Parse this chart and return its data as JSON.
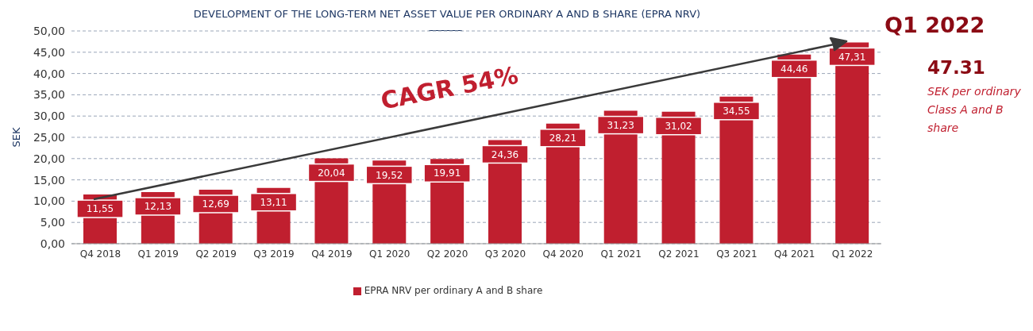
{
  "chart_data": {
    "type": "bar",
    "title": "DEVELOPMENT OF THE LONG-TERM NET ASSET VALUE PER ORDINARY A AND B SHARE (EPRA NRV)",
    "ylabel": "SEK",
    "categories": [
      "Q4 2018",
      "Q1 2019",
      "Q2 2019",
      "Q3 2019",
      "Q4 2019",
      "Q1 2020",
      "Q2 2020",
      "Q3 2020",
      "Q4 2020",
      "Q1 2021",
      "Q2 2021",
      "Q3 2021",
      "Q4 2021",
      "Q1 2022"
    ],
    "series": [
      {
        "name": "EPRA NRV per ordinary A and B share",
        "color": "#c01f2f",
        "values": [
          11.55,
          12.13,
          12.69,
          13.11,
          20.04,
          19.52,
          19.91,
          24.36,
          28.21,
          31.23,
          31.02,
          34.55,
          44.46,
          47.31
        ],
        "value_labels": [
          "11,55",
          "12,13",
          "12,69",
          "13,11",
          "20,04",
          "19,52",
          "19,91",
          "24,36",
          "28,21",
          "31,23",
          "31,02",
          "34,55",
          "44,46",
          "47,31"
        ]
      }
    ],
    "ylim": [
      0,
      50
    ],
    "yticks": [
      {
        "value": 0,
        "label": "0,00"
      },
      {
        "value": 5,
        "label": "5,00"
      },
      {
        "value": 10,
        "label": "10,00"
      },
      {
        "value": 15,
        "label": "15,00"
      },
      {
        "value": 20,
        "label": "20,00"
      },
      {
        "value": 25,
        "label": "25,00"
      },
      {
        "value": 30,
        "label": "30,00"
      },
      {
        "value": 35,
        "label": "35,00"
      },
      {
        "value": 40,
        "label": "40,00"
      },
      {
        "value": 45,
        "label": "45,00"
      },
      {
        "value": 50,
        "label": "50,00"
      }
    ],
    "grid": "y",
    "legend": "bottom",
    "annotations": [
      "CAGR 54%",
      "Q1 2022",
      "47.31",
      "SEK per ordinary Class A and B share"
    ]
  }
}
